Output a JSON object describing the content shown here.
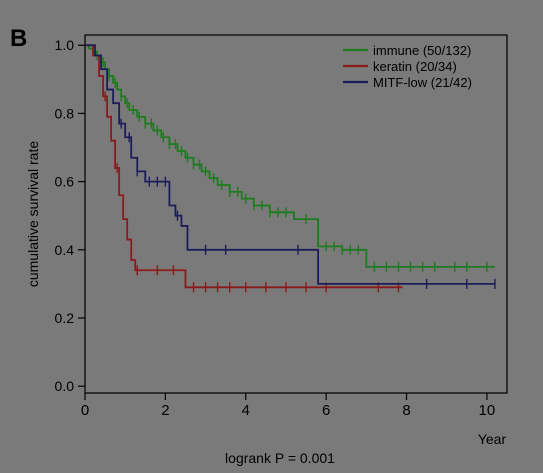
{
  "panel_label": "B",
  "footnote": "logrank P = 0.001",
  "chart_data": {
    "type": "line",
    "subtype": "kaplan-meier",
    "title": "",
    "xlabel": "Year",
    "ylabel": "cumulative survival rate",
    "xlim": [
      0,
      10.5
    ],
    "ylim": [
      -0.02,
      1.03
    ],
    "x_ticks": [
      0,
      2,
      4,
      6,
      8,
      10
    ],
    "y_ticks": [
      0.0,
      0.2,
      0.4,
      0.6,
      0.8,
      1.0
    ],
    "x_tick_labels": [
      "0",
      "2",
      "4",
      "6",
      "8",
      "10"
    ],
    "y_tick_labels": [
      "0.0",
      "0.2",
      "0.4",
      "0.6",
      "0.8",
      "1.0"
    ],
    "grid": false,
    "legend_position": "top-right",
    "series": [
      {
        "name": "immune (50/132)",
        "color": "#1e7a1e",
        "steps": [
          [
            0,
            1.0
          ],
          [
            0.1,
            0.99
          ],
          [
            0.2,
            0.98
          ],
          [
            0.3,
            0.97
          ],
          [
            0.4,
            0.95
          ],
          [
            0.5,
            0.93
          ],
          [
            0.6,
            0.91
          ],
          [
            0.7,
            0.89
          ],
          [
            0.8,
            0.87
          ],
          [
            0.9,
            0.85
          ],
          [
            1.0,
            0.83
          ],
          [
            1.1,
            0.81
          ],
          [
            1.3,
            0.79
          ],
          [
            1.5,
            0.77
          ],
          [
            1.7,
            0.75
          ],
          [
            1.9,
            0.73
          ],
          [
            2.1,
            0.71
          ],
          [
            2.3,
            0.69
          ],
          [
            2.5,
            0.67
          ],
          [
            2.7,
            0.65
          ],
          [
            2.9,
            0.63
          ],
          [
            3.1,
            0.61
          ],
          [
            3.3,
            0.59
          ],
          [
            3.6,
            0.57
          ],
          [
            3.9,
            0.55
          ],
          [
            4.2,
            0.53
          ],
          [
            4.6,
            0.51
          ],
          [
            5.2,
            0.49
          ],
          [
            5.8,
            0.41
          ],
          [
            6.4,
            0.4
          ],
          [
            7.0,
            0.35
          ],
          [
            10.2,
            0.35
          ]
        ],
        "censor_x": [
          0.3,
          0.45,
          0.6,
          0.75,
          0.9,
          1.05,
          1.2,
          1.35,
          1.5,
          1.65,
          1.8,
          1.95,
          2.1,
          2.25,
          2.4,
          2.55,
          2.7,
          2.85,
          3.0,
          3.2,
          3.4,
          3.6,
          3.8,
          4.0,
          4.2,
          4.4,
          4.6,
          4.8,
          5.0,
          5.5,
          6.0,
          6.2,
          6.4,
          6.6,
          6.8,
          7.2,
          7.5,
          7.8,
          8.1,
          8.4,
          8.7,
          9.2,
          9.5,
          10.0
        ]
      },
      {
        "name": "keratin (20/34)",
        "color": "#8b1a1a",
        "steps": [
          [
            0,
            1.0
          ],
          [
            0.2,
            0.97
          ],
          [
            0.35,
            0.91
          ],
          [
            0.45,
            0.85
          ],
          [
            0.55,
            0.79
          ],
          [
            0.65,
            0.72
          ],
          [
            0.75,
            0.64
          ],
          [
            0.85,
            0.56
          ],
          [
            0.95,
            0.49
          ],
          [
            1.05,
            0.43
          ],
          [
            1.15,
            0.37
          ],
          [
            1.25,
            0.34
          ],
          [
            2.5,
            0.29
          ],
          [
            7.9,
            0.29
          ]
        ],
        "censor_x": [
          0.5,
          0.8,
          1.3,
          1.8,
          2.2,
          2.7,
          3.0,
          3.3,
          3.6,
          4.0,
          4.5,
          5.0,
          5.5,
          6.0,
          7.3,
          7.8
        ]
      },
      {
        "name": "MITF-low (21/42)",
        "color": "#1c1c5a",
        "steps": [
          [
            0,
            1.0
          ],
          [
            0.25,
            0.97
          ],
          [
            0.4,
            0.93
          ],
          [
            0.55,
            0.87
          ],
          [
            0.7,
            0.83
          ],
          [
            0.85,
            0.77
          ],
          [
            1.0,
            0.73
          ],
          [
            1.15,
            0.67
          ],
          [
            1.3,
            0.63
          ],
          [
            1.5,
            0.6
          ],
          [
            2.1,
            0.53
          ],
          [
            2.25,
            0.5
          ],
          [
            2.4,
            0.47
          ],
          [
            2.55,
            0.4
          ],
          [
            5.8,
            0.3
          ],
          [
            10.2,
            0.3
          ]
        ],
        "censor_x": [
          0.9,
          1.1,
          1.3,
          1.6,
          1.8,
          2.0,
          2.3,
          3.0,
          3.5,
          5.3,
          8.5,
          9.5,
          10.2
        ]
      }
    ]
  }
}
